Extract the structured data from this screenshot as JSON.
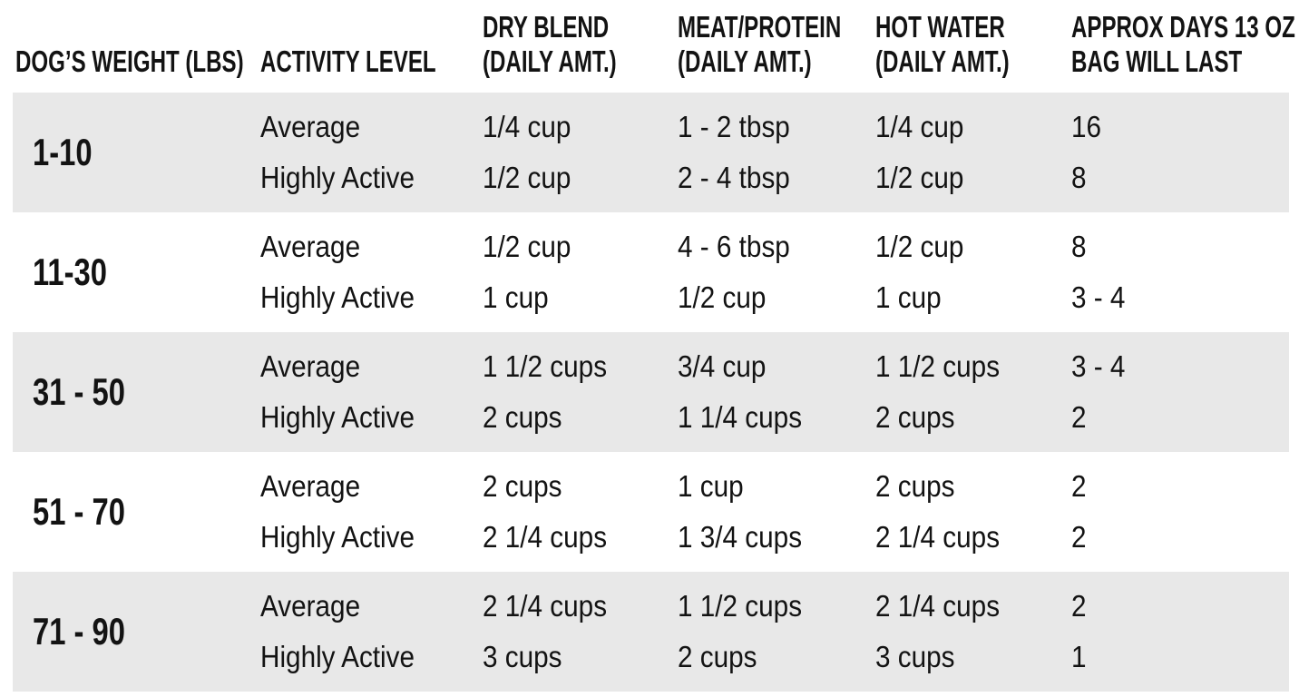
{
  "colors": {
    "background": "#ffffff",
    "row_band": "#e8e8e8",
    "text": "#131313"
  },
  "table": {
    "columns": [
      {
        "lines": [
          "DOG’S WEIGHT (LBS)"
        ]
      },
      {
        "lines": [
          "ACTIVITY LEVEL"
        ]
      },
      {
        "lines": [
          "DRY BLEND",
          "(DAILY AMT.)"
        ]
      },
      {
        "lines": [
          "MEAT/PROTEIN",
          "(DAILY AMT.)"
        ]
      },
      {
        "lines": [
          "HOT WATER",
          "(DAILY AMT.)"
        ]
      },
      {
        "lines": [
          "APPROX DAYS 13 OZ",
          "BAG WILL LAST"
        ]
      }
    ],
    "rows": [
      {
        "weight": "1-10",
        "entries": [
          {
            "activity": "Average",
            "dry_blend": "1/4 cup",
            "meat_protein": "1 - 2 tbsp",
            "hot_water": "1/4 cup",
            "days": "16"
          },
          {
            "activity": "Highly Active",
            "dry_blend": "1/2 cup",
            "meat_protein": "2 - 4 tbsp",
            "hot_water": "1/2 cup",
            "days": "8"
          }
        ]
      },
      {
        "weight": "11-30",
        "entries": [
          {
            "activity": "Average",
            "dry_blend": "1/2 cup",
            "meat_protein": "4 - 6 tbsp",
            "hot_water": "1/2 cup",
            "days": "8"
          },
          {
            "activity": "Highly Active",
            "dry_blend": "1 cup",
            "meat_protein": "1/2 cup",
            "hot_water": "1 cup",
            "days": "3 - 4"
          }
        ]
      },
      {
        "weight": "31 - 50",
        "entries": [
          {
            "activity": "Average",
            "dry_blend": "1 1/2 cups",
            "meat_protein": "3/4 cup",
            "hot_water": "1 1/2 cups",
            "days": "3 - 4"
          },
          {
            "activity": "Highly Active",
            "dry_blend": "2 cups",
            "meat_protein": "1 1/4 cups",
            "hot_water": "2 cups",
            "days": "2"
          }
        ]
      },
      {
        "weight": "51 - 70",
        "entries": [
          {
            "activity": "Average",
            "dry_blend": "2 cups",
            "meat_protein": "1 cup",
            "hot_water": "2 cups",
            "days": "2"
          },
          {
            "activity": "Highly Active",
            "dry_blend": "2 1/4 cups",
            "meat_protein": "1 3/4 cups",
            "hot_water": "2 1/4 cups",
            "days": "2"
          }
        ]
      },
      {
        "weight": "71 - 90",
        "entries": [
          {
            "activity": "Average",
            "dry_blend": "2 1/4 cups",
            "meat_protein": "1 1/2 cups",
            "hot_water": "2 1/4 cups",
            "days": "2"
          },
          {
            "activity": "Highly Active",
            "dry_blend": "3 cups",
            "meat_protein": "2 cups",
            "hot_water": "3 cups",
            "days": "1"
          }
        ]
      }
    ]
  },
  "chart_data": {
    "type": "table",
    "title": "",
    "columns": [
      "DOG'S WEIGHT (LBS)",
      "ACTIVITY LEVEL",
      "DRY BLEND (DAILY AMT.)",
      "MEAT/PROTEIN (DAILY AMT.)",
      "HOT WATER (DAILY AMT.)",
      "APPROX DAYS 13 OZ BAG WILL LAST"
    ],
    "rows": [
      [
        "1-10",
        "Average",
        "1/4 cup",
        "1 - 2 tbsp",
        "1/4 cup",
        "16"
      ],
      [
        "1-10",
        "Highly Active",
        "1/2 cup",
        "2 - 4 tbsp",
        "1/2 cup",
        "8"
      ],
      [
        "11-30",
        "Average",
        "1/2 cup",
        "4 - 6 tbsp",
        "1/2 cup",
        "8"
      ],
      [
        "11-30",
        "Highly Active",
        "1 cup",
        "1/2 cup",
        "1 cup",
        "3 - 4"
      ],
      [
        "31 - 50",
        "Average",
        "1 1/2 cups",
        "3/4 cup",
        "1 1/2 cups",
        "3 - 4"
      ],
      [
        "31 - 50",
        "Highly Active",
        "2 cups",
        "1 1/4 cups",
        "2 cups",
        "2"
      ],
      [
        "51 - 70",
        "Average",
        "2 cups",
        "1 cup",
        "2 cups",
        "2"
      ],
      [
        "51 - 70",
        "Highly Active",
        "2 1/4 cups",
        "1 3/4 cups",
        "2 1/4 cups",
        "2"
      ],
      [
        "71 - 90",
        "Average",
        "2 1/4 cups",
        "1 1/2 cups",
        "2 1/4 cups",
        "2"
      ],
      [
        "71 - 90",
        "Highly Active",
        "3 cups",
        "2 cups",
        "3 cups",
        "1"
      ]
    ]
  }
}
